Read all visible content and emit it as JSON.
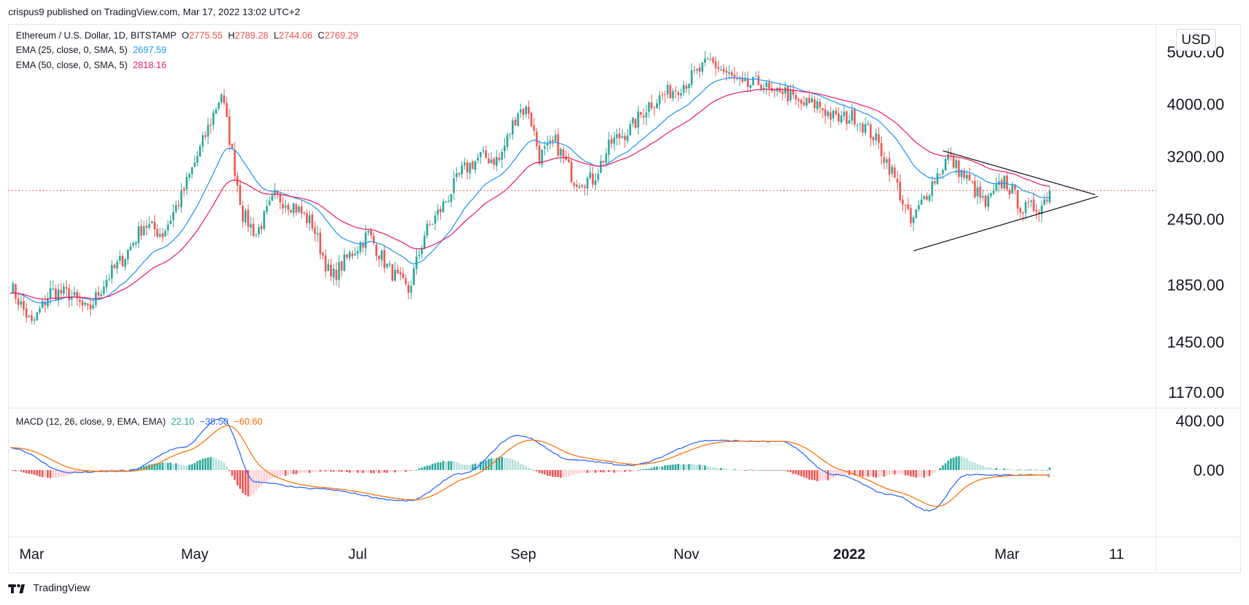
{
  "header": {
    "published": "crispus9 published on TradingView.com, Mar 17, 2022 13:02 UTC+2"
  },
  "legend": {
    "symbol": "Ethereum / U.S. Dollar, 1D, BITSTAMP",
    "open_label": "O",
    "open": "2775.55",
    "high_label": "H",
    "high": "2789.28",
    "low_label": "L",
    "low": "2744.06",
    "close_label": "C",
    "close": "2769.29",
    "ema25_label": "EMA (25, close, 0, SMA, 5)",
    "ema25_value": "2697.59",
    "ema50_label": "EMA (50, close, 0, SMA, 5)",
    "ema50_value": "2818.16",
    "macd_label": "MACD (12, 26, close, 9, EMA, EMA)",
    "macd_hist": "22.10",
    "macd_line": "−38.50",
    "macd_signal": "−60.60"
  },
  "currency_button": "USD",
  "footer": {
    "brand": "TradingView"
  },
  "colors": {
    "up": "#26a69a",
    "down": "#ef5350",
    "ema25": "#2196f3",
    "ema50": "#e91e63",
    "macd_line": "#2962ff",
    "signal_line": "#ff6d00",
    "price_line": "#ef5350",
    "triangle": "#000000"
  },
  "chart_data": [
    {
      "type": "candlestick",
      "title": "Ethereum / U.S. Dollar, 1D, BITSTAMP",
      "scale": "log",
      "ylim": [
        1120,
        5500
      ],
      "y_ticks": [
        "5000.00",
        "4000.00",
        "3200.00",
        "2450.00",
        "1850.00",
        "1450.00",
        "1170.00"
      ],
      "x_ticks": [
        "Mar",
        "May",
        "Jul",
        "Sep",
        "Nov",
        "2022",
        "Mar",
        "11"
      ],
      "last_price": 2769.29,
      "series": [
        {
          "name": "Close",
          "x": [
            "2021-02-21",
            "2021-03-01",
            "2021-03-08",
            "2021-03-15",
            "2021-03-22",
            "2021-03-29",
            "2021-04-05",
            "2021-04-12",
            "2021-04-19",
            "2021-04-26",
            "2021-05-03",
            "2021-05-11",
            "2021-05-19",
            "2021-05-24",
            "2021-05-31",
            "2021-06-07",
            "2021-06-14",
            "2021-06-21",
            "2021-06-28",
            "2021-07-05",
            "2021-07-12",
            "2021-07-20",
            "2021-07-26",
            "2021-08-02",
            "2021-08-09",
            "2021-08-16",
            "2021-08-23",
            "2021-08-30",
            "2021-09-03",
            "2021-09-07",
            "2021-09-13",
            "2021-09-20",
            "2021-09-27",
            "2021-10-04",
            "2021-10-11",
            "2021-10-18",
            "2021-10-25",
            "2021-11-01",
            "2021-11-10",
            "2021-11-15",
            "2021-11-22",
            "2021-11-29",
            "2021-12-04",
            "2021-12-06",
            "2021-12-13",
            "2021-12-20",
            "2021-12-27",
            "2022-01-03",
            "2022-01-10",
            "2022-01-17",
            "2022-01-24",
            "2022-01-31",
            "2022-02-07",
            "2022-02-14",
            "2022-02-21",
            "2022-02-28",
            "2022-03-07",
            "2022-03-14",
            "2022-03-17"
          ],
          "y": [
            1850,
            1560,
            1800,
            1780,
            1650,
            1900,
            2100,
            2400,
            2300,
            2700,
            3300,
            4200,
            2500,
            2300,
            2700,
            2600,
            2400,
            1900,
            2100,
            2300,
            2000,
            1800,
            2300,
            2600,
            3000,
            3200,
            3150,
            3900,
            3900,
            3200,
            3400,
            2900,
            2900,
            3400,
            3600,
            4000,
            4200,
            4400,
            4800,
            4600,
            4300,
            4400,
            4100,
            4300,
            4000,
            4000,
            3750,
            3800,
            3500,
            3000,
            2400,
            2800,
            3200,
            2900,
            2600,
            2900,
            2550,
            2600,
            2770
          ]
        },
        {
          "name": "EMA (25, close, 0, SMA, 5)",
          "last": 2697.59
        },
        {
          "name": "EMA (50, close, 0, SMA, 5)",
          "last": 2818.16
        }
      ],
      "annotations": [
        {
          "type": "triangle",
          "upper": [
            [
              "2022-02-05",
              3280
            ],
            [
              "2022-04-03",
              2720
            ]
          ],
          "lower": [
            [
              "2022-01-25",
              2140
            ],
            [
              "2022-04-04",
              2700
            ]
          ]
        }
      ]
    },
    {
      "type": "macd",
      "title": "MACD (12, 26, close, 9, EMA, EMA)",
      "ylim": [
        -520,
        480
      ],
      "y_ticks": [
        "400.00",
        "0.00"
      ],
      "values": {
        "histogram": 22.1,
        "macd": -38.5,
        "signal": -60.6
      },
      "series": [
        {
          "name": "MACD",
          "x": [
            "2021-02-21",
            "2021-03-15",
            "2021-04-05",
            "2021-04-26",
            "2021-05-11",
            "2021-05-24",
            "2021-06-14",
            "2021-07-20",
            "2021-08-09",
            "2021-08-30",
            "2021-09-20",
            "2021-10-11",
            "2021-11-10",
            "2021-12-06",
            "2021-12-27",
            "2022-01-17",
            "2022-01-31",
            "2022-02-14",
            "2022-03-07",
            "2022-03-17"
          ],
          "y": [
            180,
            -20,
            -10,
            180,
            420,
            -100,
            -150,
            -250,
            -30,
            280,
            80,
            40,
            240,
            230,
            -40,
            -200,
            -330,
            -40,
            -40,
            -38.5
          ]
        }
      ]
    }
  ]
}
